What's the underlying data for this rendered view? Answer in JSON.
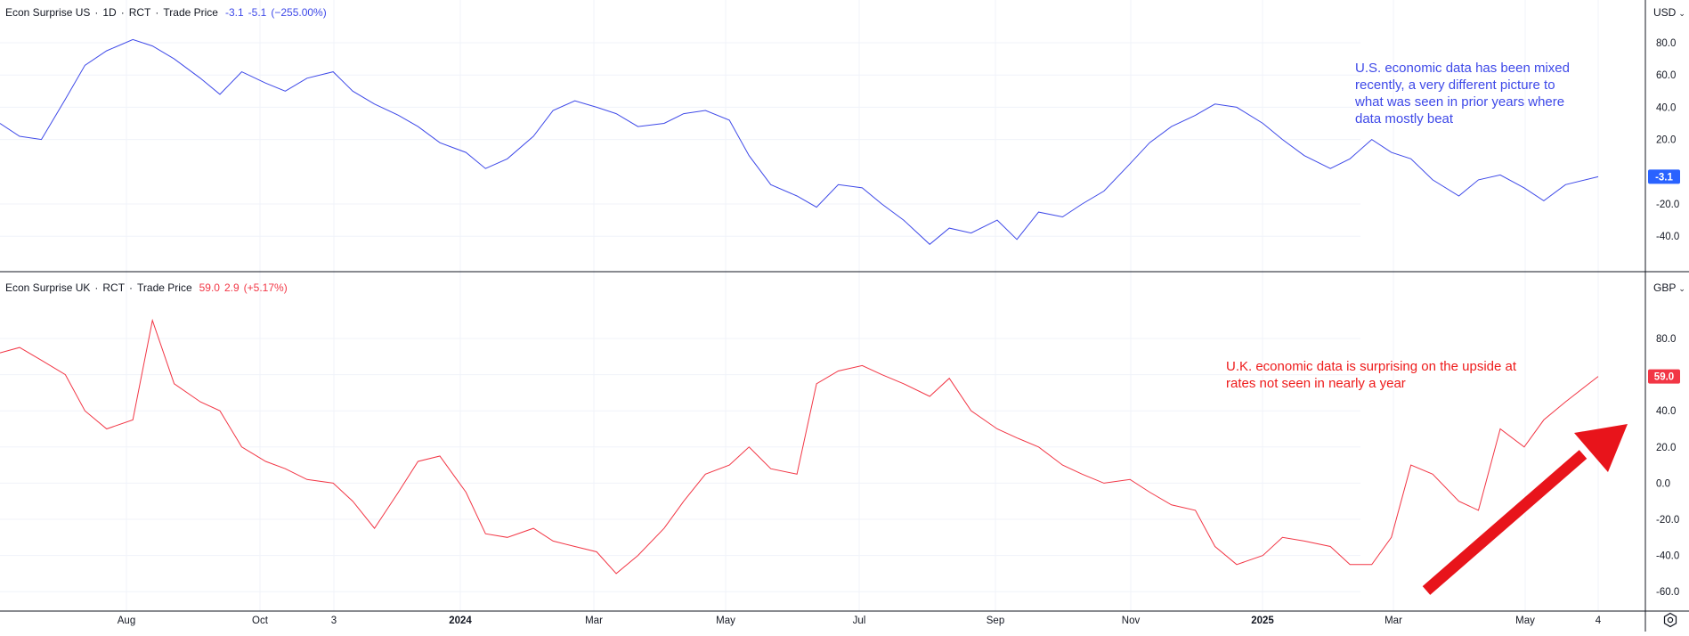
{
  "panes": {
    "us": {
      "legend": {
        "symbol": "Econ Surprise US",
        "interval": "1D",
        "source": "RCT",
        "field": "Trade Price",
        "last": "-3.1",
        "change": "-5.1",
        "change_pct": "(−255.00%)"
      },
      "currency": "USD",
      "last_badge": "-3.1",
      "annotation": "U.S. economic data has been mixed recently, a very different picture to what was seen in prior years where data mostly beat",
      "y_ticks": [
        "80.0",
        "60.0",
        "40.0",
        "20.0",
        "-20.0",
        "-40.0"
      ],
      "color": "#3e49e8"
    },
    "uk": {
      "legend": {
        "symbol": "Econ Surprise UK",
        "source": "RCT",
        "field": "Trade Price",
        "last": "59.0",
        "change": "2.9",
        "change_pct": "(+5.17%)"
      },
      "currency": "GBP",
      "last_badge": "59.0",
      "annotation": "U.K. economic data is surprising on the upside at rates not seen in nearly a year",
      "y_ticks": [
        "80.0",
        "60.0",
        "40.0",
        "20.0",
        "0.0",
        "-20.0",
        "-40.0",
        "-60.0"
      ],
      "color": "#f23645"
    }
  },
  "x_axis": {
    "labels": [
      "Aug",
      "Oct",
      "3",
      "2024",
      "Mar",
      "May",
      "Jul",
      "Sep",
      "Nov",
      "2025",
      "Mar",
      "May",
      "4"
    ]
  },
  "icons": {
    "settings": "settings-gear-icon",
    "dropdown": "chevron-down-icon",
    "trend_arrow": "red-arrow-up-right"
  },
  "chart_data": [
    {
      "type": "line",
      "title": "Econ Surprise US · 1D · RCT · Trade Price",
      "series": [
        {
          "name": "Econ Surprise US",
          "color": "#3e49e8",
          "x": [
            "2023-06-01",
            "2023-06-10",
            "2023-06-20",
            "2023-07-01",
            "2023-07-10",
            "2023-07-20",
            "2023-08-01",
            "2023-08-10",
            "2023-08-20",
            "2023-09-01",
            "2023-09-10",
            "2023-09-20",
            "2023-10-01",
            "2023-10-10",
            "2023-10-20",
            "2023-11-01",
            "2023-11-10",
            "2023-11-20",
            "2023-12-01",
            "2023-12-10",
            "2023-12-20",
            "2024-01-01",
            "2024-01-10",
            "2024-01-20",
            "2024-02-01",
            "2024-02-10",
            "2024-02-20",
            "2024-03-01",
            "2024-03-10",
            "2024-03-20",
            "2024-04-01",
            "2024-04-10",
            "2024-04-20",
            "2024-05-01",
            "2024-05-10",
            "2024-05-20",
            "2024-06-01",
            "2024-06-10",
            "2024-06-20",
            "2024-07-01",
            "2024-07-10",
            "2024-07-20",
            "2024-08-01",
            "2024-08-10",
            "2024-08-20",
            "2024-09-01",
            "2024-09-10",
            "2024-09-20",
            "2024-10-01",
            "2024-10-10",
            "2024-10-20",
            "2024-11-01",
            "2024-11-10",
            "2024-11-20",
            "2024-12-01",
            "2024-12-10",
            "2024-12-20",
            "2025-01-01",
            "2025-01-10",
            "2025-01-20",
            "2025-02-01",
            "2025-02-10",
            "2025-02-20",
            "2025-03-01",
            "2025-03-10",
            "2025-03-20",
            "2025-04-01",
            "2025-04-10",
            "2025-04-20",
            "2025-05-01",
            "2025-05-10",
            "2025-05-20",
            "2025-06-04"
          ],
          "y": [
            30,
            22,
            20,
            45,
            66,
            75,
            82,
            78,
            70,
            58,
            48,
            62,
            55,
            50,
            58,
            62,
            50,
            42,
            35,
            28,
            18,
            12,
            2,
            8,
            22,
            38,
            44,
            40,
            36,
            28,
            30,
            36,
            38,
            32,
            10,
            -8,
            -15,
            -22,
            -8,
            -10,
            -20,
            -30,
            -45,
            -35,
            -38,
            -30,
            -42,
            -25,
            -28,
            -20,
            -12,
            5,
            18,
            28,
            35,
            42,
            40,
            30,
            20,
            10,
            2,
            8,
            20,
            12,
            8,
            -5,
            -15,
            -5,
            -2,
            -10,
            -18,
            -8,
            -3.1
          ]
        }
      ],
      "y_ticks": [
        80,
        60,
        40,
        20,
        -20,
        -40
      ],
      "ylim": [
        -50,
        95
      ]
    },
    {
      "type": "line",
      "title": "Econ Surprise UK · RCT · Trade Price",
      "series": [
        {
          "name": "Econ Surprise UK",
          "color": "#f23645",
          "x": [
            "2023-06-01",
            "2023-06-10",
            "2023-06-20",
            "2023-07-01",
            "2023-07-10",
            "2023-07-20",
            "2023-08-01",
            "2023-08-10",
            "2023-08-20",
            "2023-09-01",
            "2023-09-10",
            "2023-09-20",
            "2023-10-01",
            "2023-10-10",
            "2023-10-20",
            "2023-11-01",
            "2023-11-10",
            "2023-11-20",
            "2023-12-01",
            "2023-12-10",
            "2023-12-20",
            "2024-01-01",
            "2024-01-10",
            "2024-01-20",
            "2024-02-01",
            "2024-02-10",
            "2024-02-20",
            "2024-03-01",
            "2024-03-10",
            "2024-03-20",
            "2024-04-01",
            "2024-04-10",
            "2024-04-20",
            "2024-05-01",
            "2024-05-10",
            "2024-05-20",
            "2024-06-01",
            "2024-06-10",
            "2024-06-20",
            "2024-07-01",
            "2024-07-10",
            "2024-07-20",
            "2024-08-01",
            "2024-08-10",
            "2024-08-20",
            "2024-09-01",
            "2024-09-10",
            "2024-09-20",
            "2024-10-01",
            "2024-10-10",
            "2024-10-20",
            "2024-11-01",
            "2024-11-10",
            "2024-11-20",
            "2024-12-01",
            "2024-12-10",
            "2024-12-20",
            "2025-01-01",
            "2025-01-10",
            "2025-01-20",
            "2025-02-01",
            "2025-02-10",
            "2025-02-20",
            "2025-03-01",
            "2025-03-10",
            "2025-03-20",
            "2025-04-01",
            "2025-04-10",
            "2025-04-20",
            "2025-05-01",
            "2025-05-10",
            "2025-05-20",
            "2025-06-04"
          ],
          "y": [
            72,
            75,
            68,
            60,
            40,
            30,
            35,
            90,
            55,
            45,
            40,
            20,
            12,
            8,
            2,
            0,
            -10,
            -25,
            -5,
            12,
            15,
            -5,
            -28,
            -30,
            -25,
            -32,
            -35,
            -38,
            -50,
            -40,
            -25,
            -10,
            5,
            10,
            20,
            8,
            5,
            55,
            62,
            65,
            60,
            55,
            48,
            58,
            40,
            30,
            25,
            20,
            10,
            5,
            0,
            2,
            -5,
            -12,
            -15,
            -35,
            -45,
            -40,
            -30,
            -32,
            -35,
            -45,
            -45,
            -30,
            10,
            5,
            -10,
            -15,
            30,
            20,
            35,
            45,
            59
          ]
        }
      ],
      "y_ticks": [
        80,
        60,
        40,
        20,
        0,
        -20,
        -40,
        -60
      ],
      "ylim": [
        -65,
        100
      ]
    }
  ]
}
